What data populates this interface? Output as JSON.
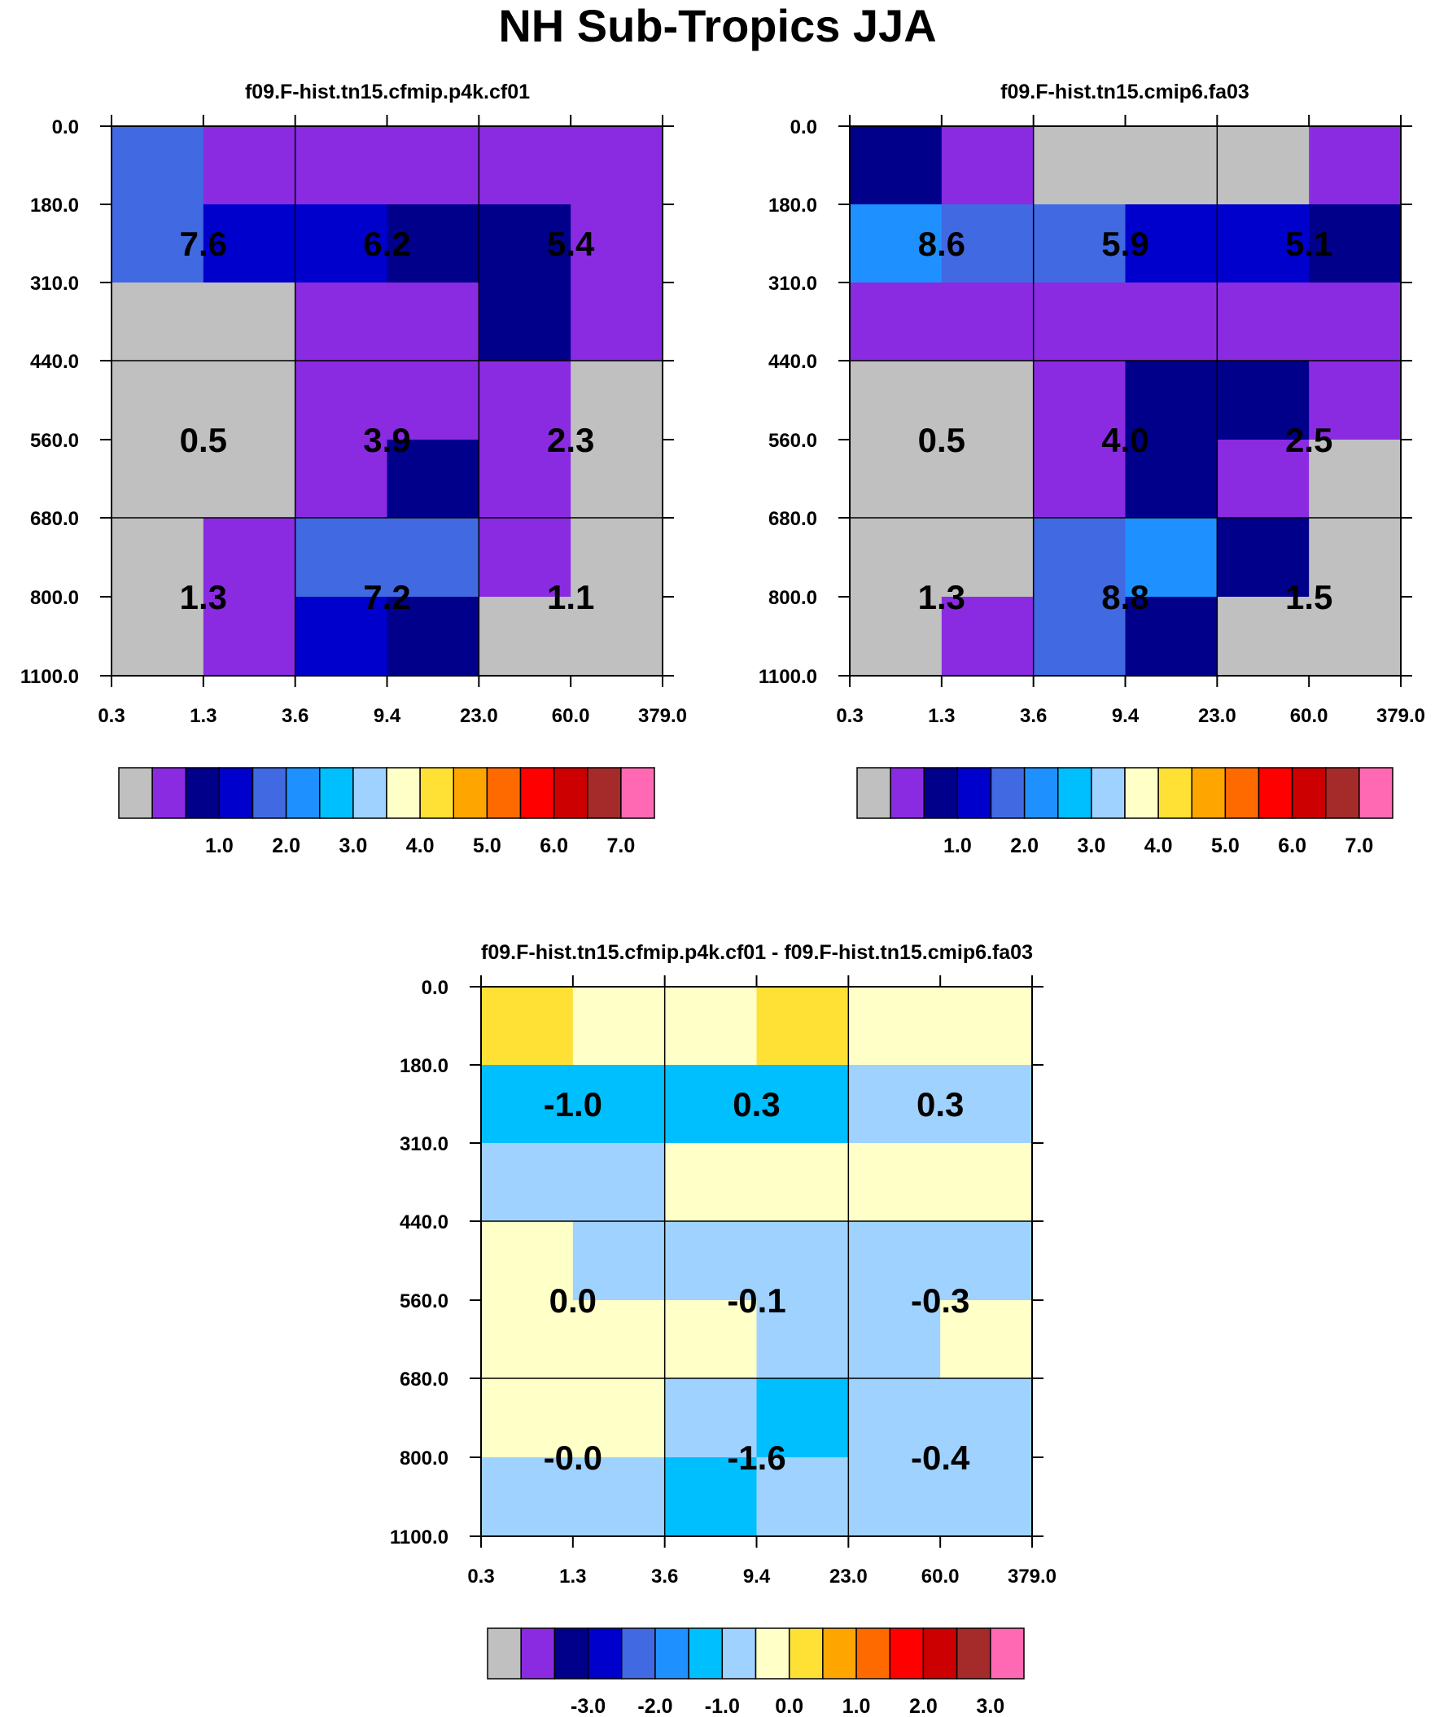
{
  "title": "NH Sub-Tropics JJA",
  "colors": {
    "scale": [
      "#c0c0c0",
      "#8a2be2",
      "#00008b",
      "#0000cd",
      "#4169e1",
      "#1e90ff",
      "#00bfff",
      "#a0d2ff",
      "#ffffc8",
      "#ffe135",
      "#ffa500",
      "#ff6a00",
      "#ff0000",
      "#cc0000",
      "#a52a2a",
      "#ff69b4"
    ]
  },
  "chart_data": [
    {
      "type": "heatmap",
      "title": "f09.F-hist.tn15.cfmip.p4k.cf01",
      "x_ticks": [
        "0.3",
        "1.3",
        "3.6",
        "9.4",
        "23.0",
        "60.0",
        "379.0"
      ],
      "y_ticks": [
        "0.0",
        "180.0",
        "310.0",
        "440.0",
        "560.0",
        "680.0",
        "800.0",
        "1100.0"
      ],
      "cell_colors": [
        [
          4,
          1,
          1,
          1,
          1,
          1
        ],
        [
          4,
          3,
          3,
          2,
          2,
          1
        ],
        [
          0,
          0,
          1,
          1,
          2,
          1
        ],
        [
          0,
          0,
          1,
          1,
          1,
          0
        ],
        [
          0,
          0,
          1,
          2,
          1,
          0
        ],
        [
          0,
          1,
          4,
          4,
          1,
          0
        ],
        [
          0,
          1,
          3,
          2,
          0,
          0
        ]
      ],
      "block_values": [
        [
          "7.6",
          "6.2",
          "5.4"
        ],
        [
          "0.5",
          "3.9",
          "2.3"
        ],
        [
          "1.3",
          "7.2",
          "1.1"
        ]
      ],
      "colorbar_labels": [
        "1.0",
        "2.0",
        "3.0",
        "4.0",
        "5.0",
        "6.0",
        "7.0"
      ]
    },
    {
      "type": "heatmap",
      "title": "f09.F-hist.tn15.cmip6.fa03",
      "x_ticks": [
        "0.3",
        "1.3",
        "3.6",
        "9.4",
        "23.0",
        "60.0",
        "379.0"
      ],
      "y_ticks": [
        "0.0",
        "180.0",
        "310.0",
        "440.0",
        "560.0",
        "680.0",
        "800.0",
        "1100.0"
      ],
      "cell_colors": [
        [
          2,
          1,
          0,
          0,
          0,
          1
        ],
        [
          5,
          4,
          4,
          3,
          3,
          2
        ],
        [
          1,
          1,
          1,
          1,
          1,
          1
        ],
        [
          0,
          0,
          1,
          2,
          2,
          1
        ],
        [
          0,
          0,
          1,
          2,
          1,
          0
        ],
        [
          0,
          0,
          4,
          5,
          2,
          0
        ],
        [
          0,
          1,
          4,
          2,
          0,
          0
        ]
      ],
      "block_values": [
        [
          "8.6",
          "5.9",
          "5.1"
        ],
        [
          "0.5",
          "4.0",
          "2.5"
        ],
        [
          "1.3",
          "8.8",
          "1.5"
        ]
      ],
      "colorbar_labels": [
        "1.0",
        "2.0",
        "3.0",
        "4.0",
        "5.0",
        "6.0",
        "7.0"
      ]
    },
    {
      "type": "heatmap",
      "title": "f09.F-hist.tn15.cfmip.p4k.cf01 - f09.F-hist.tn15.cmip6.fa03",
      "x_ticks": [
        "0.3",
        "1.3",
        "3.6",
        "9.4",
        "23.0",
        "60.0",
        "379.0"
      ],
      "y_ticks": [
        "0.0",
        "180.0",
        "310.0",
        "440.0",
        "560.0",
        "680.0",
        "800.0",
        "1100.0"
      ],
      "cell_colors": [
        [
          9,
          8,
          8,
          9,
          8,
          8
        ],
        [
          6,
          6,
          6,
          6,
          7,
          7
        ],
        [
          7,
          7,
          8,
          8,
          8,
          8
        ],
        [
          8,
          7,
          7,
          7,
          7,
          7
        ],
        [
          8,
          8,
          8,
          7,
          7,
          8
        ],
        [
          8,
          8,
          7,
          6,
          7,
          7
        ],
        [
          7,
          7,
          6,
          7,
          7,
          7
        ]
      ],
      "block_values": [
        [
          "-1.0",
          "0.3",
          "0.3"
        ],
        [
          "0.0",
          "-0.1",
          "-0.3"
        ],
        [
          "-0.0",
          "-1.6",
          "-0.4"
        ]
      ],
      "colorbar_labels": [
        "-3.0",
        "-2.0",
        "-1.0",
        "0.0",
        "1.0",
        "2.0",
        "3.0"
      ]
    }
  ]
}
